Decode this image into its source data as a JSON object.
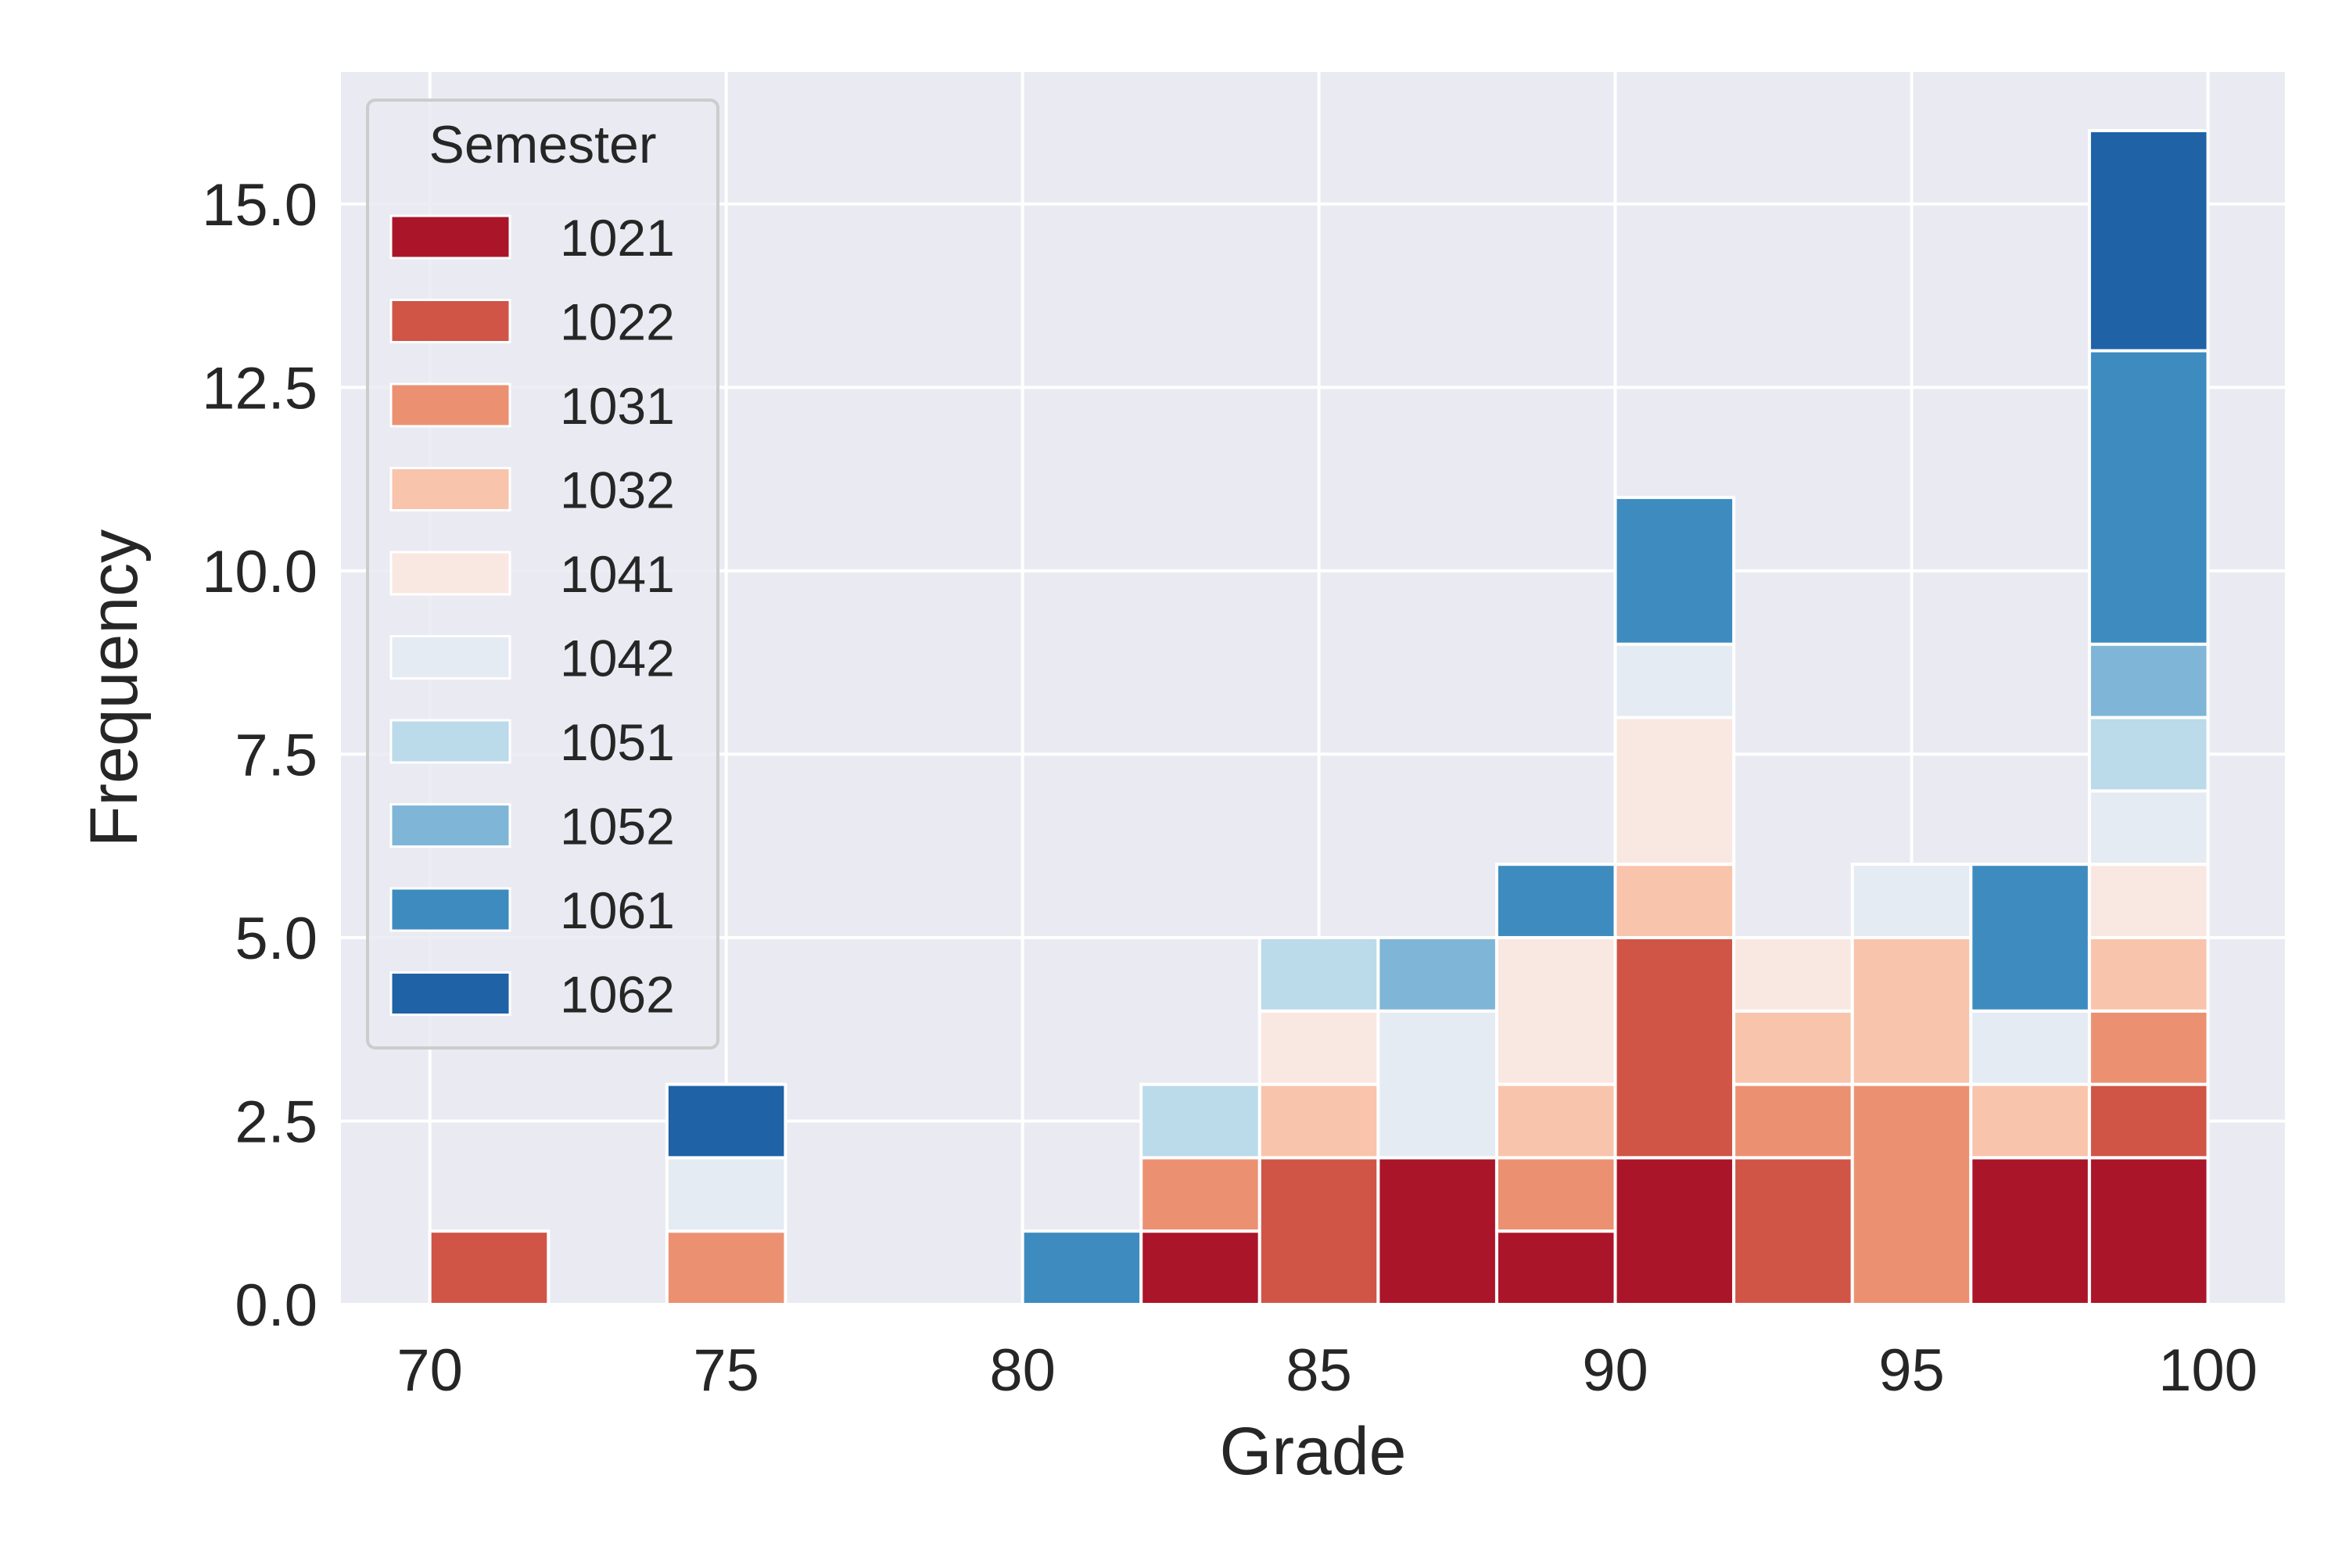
{
  "chart_data": {
    "type": "bar",
    "stacked": true,
    "histogram": true,
    "title": "",
    "xlabel": "Grade",
    "ylabel": "Frequency",
    "xlim": [
      68.5,
      101.3
    ],
    "ylim": [
      0,
      16.8
    ],
    "xticks": [
      70,
      75,
      80,
      85,
      90,
      95,
      100
    ],
    "xtick_labels": [
      "70",
      "75",
      "80",
      "85",
      "90",
      "95",
      "100"
    ],
    "yticks": [
      0,
      2.5,
      5,
      7.5,
      10,
      12.5,
      15
    ],
    "ytick_labels": [
      "0.0",
      "2.5",
      "5.0",
      "7.5",
      "10.0",
      "12.5",
      "15.0"
    ],
    "grid": true,
    "background_color": "#eaeaf2",
    "grid_color": "#ffffff",
    "bin_edges": [
      70,
      72,
      74,
      76,
      78,
      80,
      82,
      84,
      86,
      88,
      90,
      92,
      94,
      96,
      98,
      100
    ],
    "legend": {
      "title": "Semester",
      "placement": "upper-left"
    },
    "series": [
      {
        "name": "1021",
        "color": "#ab1529",
        "values": [
          0,
          0,
          0,
          0,
          0,
          0,
          1,
          0,
          2,
          1,
          2,
          0,
          0,
          2,
          2
        ]
      },
      {
        "name": "1022",
        "color": "#d05546",
        "values": [
          1,
          0,
          0,
          0,
          0,
          0,
          0,
          2,
          0,
          0,
          3,
          2,
          0,
          0,
          1
        ]
      },
      {
        "name": "1031",
        "color": "#eb9172",
        "values": [
          0,
          0,
          1,
          0,
          0,
          0,
          1,
          0,
          0,
          1,
          0,
          1,
          3,
          0,
          1
        ]
      },
      {
        "name": "1032",
        "color": "#f8c4ab",
        "values": [
          0,
          0,
          0,
          0,
          0,
          0,
          0,
          1,
          0,
          1,
          1,
          1,
          2,
          1,
          1
        ]
      },
      {
        "name": "1041",
        "color": "#f9e8e1",
        "values": [
          0,
          0,
          0,
          0,
          0,
          0,
          0,
          1,
          0,
          2,
          2,
          1,
          0,
          0,
          1
        ]
      },
      {
        "name": "1042",
        "color": "#e4ebf2",
        "values": [
          0,
          0,
          1,
          0,
          0,
          0,
          0,
          0,
          2,
          0,
          1,
          0,
          1,
          1,
          1
        ]
      },
      {
        "name": "1051",
        "color": "#bbdaea",
        "values": [
          0,
          0,
          0,
          0,
          0,
          0,
          1,
          1,
          0,
          0,
          0,
          0,
          0,
          0,
          1
        ]
      },
      {
        "name": "1052",
        "color": "#7fb6d7",
        "values": [
          0,
          0,
          0,
          0,
          0,
          0,
          0,
          0,
          1,
          0,
          0,
          0,
          0,
          0,
          1
        ]
      },
      {
        "name": "1061",
        "color": "#3e8bbf",
        "values": [
          0,
          0,
          0,
          0,
          0,
          1,
          0,
          0,
          0,
          1,
          2,
          0,
          0,
          2,
          4
        ]
      },
      {
        "name": "1062",
        "color": "#1f62a6",
        "values": [
          0,
          0,
          1,
          0,
          0,
          0,
          0,
          0,
          0,
          0,
          0,
          0,
          0,
          0,
          3
        ]
      }
    ]
  }
}
